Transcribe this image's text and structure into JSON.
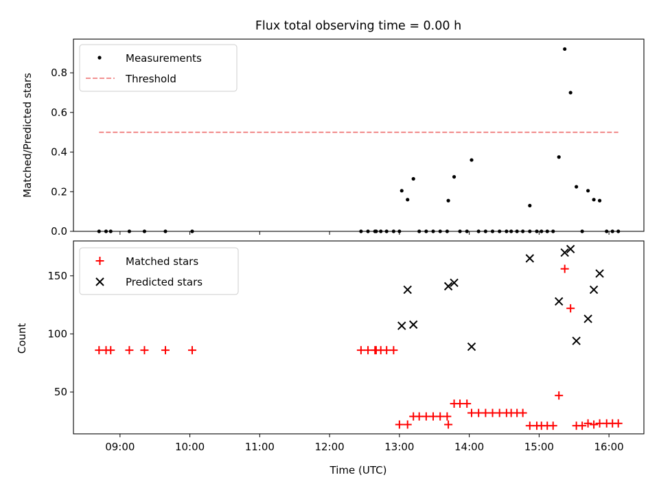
{
  "figure": {
    "title": "Flux total observing time = 0.00 h"
  },
  "chart_data": [
    {
      "type": "scatter",
      "title": "Flux total observing time = 0.00 h",
      "xlabel": "",
      "ylabel": "Matched/Predicted stars",
      "xlim": [
        "08:20",
        "16:30"
      ],
      "ylim": [
        0,
        0.97
      ],
      "yticks": [
        0.0,
        0.2,
        0.4,
        0.6,
        0.8
      ],
      "ytick_labels": [
        "0.0",
        "0.2",
        "0.4",
        "0.6",
        "0.8"
      ],
      "xticks": [
        "09:00",
        "10:00",
        "11:00",
        "12:00",
        "13:00",
        "14:00",
        "15:00",
        "16:00"
      ],
      "grid": false,
      "legend": {
        "placement": "upper left"
      },
      "series": [
        {
          "name": "Measurements",
          "kind": "points",
          "color": "#000000",
          "points": [
            [
              "08:42",
              0
            ],
            [
              "08:48",
              0
            ],
            [
              "08:52",
              0
            ],
            [
              "09:08",
              0
            ],
            [
              "09:21",
              0
            ],
            [
              "09:39",
              0
            ],
            [
              "10:02",
              0
            ],
            [
              "12:27",
              0
            ],
            [
              "12:33",
              0
            ],
            [
              "12:39",
              0
            ],
            [
              "12:40",
              0
            ],
            [
              "12:44",
              0
            ],
            [
              "12:49",
              0
            ],
            [
              "12:55",
              0
            ],
            [
              "13:00",
              0
            ],
            [
              "13:02",
              0.205
            ],
            [
              "13:07",
              0.16
            ],
            [
              "13:12",
              0.265
            ],
            [
              "13:17",
              0
            ],
            [
              "13:23",
              0
            ],
            [
              "13:29",
              0
            ],
            [
              "13:35",
              0
            ],
            [
              "13:41",
              0
            ],
            [
              "13:42",
              0.155
            ],
            [
              "13:47",
              0.275
            ],
            [
              "13:52",
              0
            ],
            [
              "13:58",
              0
            ],
            [
              "14:02",
              0.36
            ],
            [
              "14:08",
              0
            ],
            [
              "14:14",
              0
            ],
            [
              "14:20",
              0
            ],
            [
              "14:26",
              0
            ],
            [
              "14:32",
              0
            ],
            [
              "14:36",
              0
            ],
            [
              "14:41",
              0
            ],
            [
              "14:46",
              0
            ],
            [
              "14:52",
              0
            ],
            [
              "14:52",
              0.13
            ],
            [
              "14:58",
              0
            ],
            [
              "15:02",
              0
            ],
            [
              "15:07",
              0
            ],
            [
              "15:12",
              0
            ],
            [
              "15:17",
              0.375
            ],
            [
              "15:22",
              0.92
            ],
            [
              "15:27",
              0.7
            ],
            [
              "15:32",
              0.225
            ],
            [
              "15:37",
              0
            ],
            [
              "15:42",
              0.205
            ],
            [
              "15:47",
              0.16
            ],
            [
              "15:52",
              0.155
            ],
            [
              "15:58",
              0
            ],
            [
              "16:03",
              0
            ],
            [
              "16:08",
              0
            ]
          ]
        },
        {
          "name": "Threshold",
          "kind": "dashed-line",
          "color": "#f08080",
          "points": [
            [
              "08:42",
              0.5
            ],
            [
              "16:08",
              0.5
            ]
          ]
        }
      ]
    },
    {
      "type": "scatter",
      "xlabel": "Time (UTC)",
      "ylabel": "Count",
      "xlim": [
        "08:20",
        "16:30"
      ],
      "ylim": [
        14,
        180
      ],
      "yticks": [
        50,
        100,
        150
      ],
      "ytick_labels": [
        "50",
        "100",
        "150"
      ],
      "xticks": [
        "09:00",
        "10:00",
        "11:00",
        "12:00",
        "13:00",
        "14:00",
        "15:00",
        "16:00"
      ],
      "xtick_labels": [
        "09:00",
        "10:00",
        "11:00",
        "12:00",
        "13:00",
        "14:00",
        "15:00",
        "16:00"
      ],
      "grid": false,
      "legend": {
        "placement": "upper left"
      },
      "series": [
        {
          "name": "Matched stars",
          "marker": "plus",
          "color": "#ff0000",
          "points": [
            [
              "08:42",
              86
            ],
            [
              "08:48",
              86
            ],
            [
              "08:52",
              86
            ],
            [
              "09:08",
              86
            ],
            [
              "09:21",
              86
            ],
            [
              "09:39",
              86
            ],
            [
              "10:02",
              86
            ],
            [
              "12:27",
              86
            ],
            [
              "12:33",
              86
            ],
            [
              "12:39",
              86
            ],
            [
              "12:40",
              86
            ],
            [
              "12:44",
              86
            ],
            [
              "12:49",
              86
            ],
            [
              "12:55",
              86
            ],
            [
              "13:00",
              22
            ],
            [
              "13:07",
              22
            ],
            [
              "13:12",
              29
            ],
            [
              "13:17",
              29
            ],
            [
              "13:23",
              29
            ],
            [
              "13:29",
              29
            ],
            [
              "13:35",
              29
            ],
            [
              "13:41",
              29
            ],
            [
              "13:42",
              22
            ],
            [
              "13:47",
              40
            ],
            [
              "13:52",
              40
            ],
            [
              "13:58",
              40
            ],
            [
              "14:02",
              32
            ],
            [
              "14:08",
              32
            ],
            [
              "14:14",
              32
            ],
            [
              "14:20",
              32
            ],
            [
              "14:26",
              32
            ],
            [
              "14:32",
              32
            ],
            [
              "14:36",
              32
            ],
            [
              "14:41",
              32
            ],
            [
              "14:46",
              32
            ],
            [
              "14:52",
              21
            ],
            [
              "14:58",
              21
            ],
            [
              "15:02",
              21
            ],
            [
              "15:07",
              21
            ],
            [
              "15:12",
              21
            ],
            [
              "15:17",
              47
            ],
            [
              "15:22",
              156
            ],
            [
              "15:27",
              122
            ],
            [
              "15:32",
              21
            ],
            [
              "15:37",
              21
            ],
            [
              "15:42",
              23
            ],
            [
              "15:47",
              22
            ],
            [
              "15:52",
              23
            ],
            [
              "15:58",
              23
            ],
            [
              "16:03",
              23
            ],
            [
              "16:08",
              23
            ]
          ]
        },
        {
          "name": "Predicted stars",
          "marker": "x",
          "color": "#000000",
          "points": [
            [
              "13:02",
              107
            ],
            [
              "13:07",
              138
            ],
            [
              "13:12",
              108
            ],
            [
              "13:42",
              141
            ],
            [
              "13:47",
              144
            ],
            [
              "14:02",
              89
            ],
            [
              "14:52",
              165
            ],
            [
              "15:17",
              128
            ],
            [
              "15:22",
              170
            ],
            [
              "15:27",
              173
            ],
            [
              "15:32",
              94
            ],
            [
              "15:42",
              113
            ],
            [
              "15:47",
              138
            ],
            [
              "15:52",
              152
            ]
          ]
        }
      ]
    }
  ]
}
